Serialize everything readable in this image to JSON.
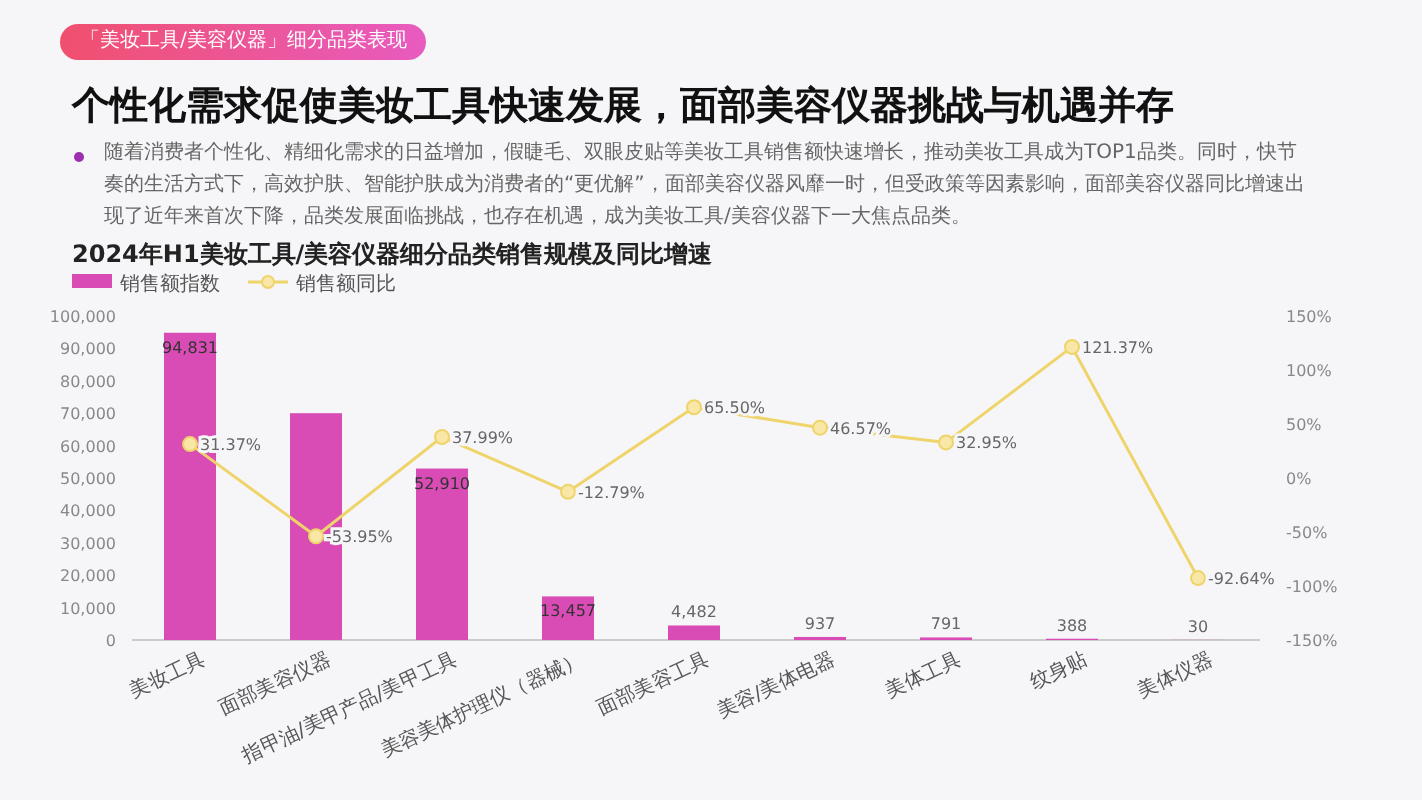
{
  "chart_data": {
    "type": "bar",
    "title": "个性化需求促使美妆工具快速发展，面部美容仪器挑战与机遇并存",
    "subtitle": "2024年H1美妆工具/美容仪器细分品类销售规模及同比增速",
    "annotations": [
      "「美妆工具/美容仪器」细分品类表现",
      "随着消费者个性化、精细化需求的日益增加，假睫毛、双眼皮贴等美妆工具销售额快速增长，推动美妆工具成为TOP1品类。同时，快节奏的生活方式下，高效护肤、智能护肤成为消费者的“更优解”，面部美容仪器风靡一时，但受政策等因素影响，面部美容仪器同比增速出现了近年来首次下降，品类发展面临挑战，也存在机遇，成为美妆工具/美容仪器下一大焦点品类。"
    ],
    "categories": [
      "美妆工具",
      "面部美容仪器",
      "指甲油/美甲产品/美甲工具",
      "美容美体护理仪（器械）",
      "面部美容工具",
      "美容/美体电器",
      "美体工具",
      "纹身贴",
      "美体仪器"
    ],
    "series": [
      {
        "name": "销售额指数",
        "color": "#d94bb5",
        "values": [
          94831,
          70000,
          52910,
          13457,
          4482,
          937,
          791,
          388,
          30
        ],
        "value_labels": [
          "94,831",
          null,
          "52,910",
          "13,457",
          "4,482",
          "937",
          "791",
          "388",
          "30"
        ]
      },
      {
        "name": "销售额同比",
        "type": "line",
        "axis": "y2",
        "color": "#eed46a",
        "values": [
          31.37,
          -53.95,
          37.99,
          -12.79,
          65.5,
          46.57,
          32.95,
          121.37,
          -92.64
        ],
        "value_labels": [
          "31.37%",
          "-53.95%",
          "37.99%",
          "-12.79%",
          "65.50%",
          "46.57%",
          "32.95%",
          "121.37%",
          "-92.64%"
        ]
      }
    ],
    "ylim": [
      0,
      100000
    ],
    "yticks": [
      {
        "value": 0,
        "label": "0"
      },
      {
        "value": 10000,
        "label": "10,000"
      },
      {
        "value": 20000,
        "label": "20,000"
      },
      {
        "value": 30000,
        "label": "30,000"
      },
      {
        "value": 40000,
        "label": "40,000"
      },
      {
        "value": 50000,
        "label": "50,000"
      },
      {
        "value": 60000,
        "label": "60,000"
      },
      {
        "value": 70000,
        "label": "70,000"
      },
      {
        "value": 80000,
        "label": "80,000"
      },
      {
        "value": 90000,
        "label": "90,000"
      },
      {
        "value": 100000,
        "label": "100,000"
      }
    ],
    "y2lim": [
      -150,
      150
    ],
    "y2ticks": [
      {
        "value": -150,
        "label": "-150%"
      },
      {
        "value": -100,
        "label": "-100%"
      },
      {
        "value": -50,
        "label": "-50%"
      },
      {
        "value": 0,
        "label": "0%"
      },
      {
        "value": 50,
        "label": "50%"
      },
      {
        "value": 100,
        "label": "100%"
      },
      {
        "value": 150,
        "label": "150%"
      }
    ],
    "legend": "top left",
    "marker": "circle"
  }
}
